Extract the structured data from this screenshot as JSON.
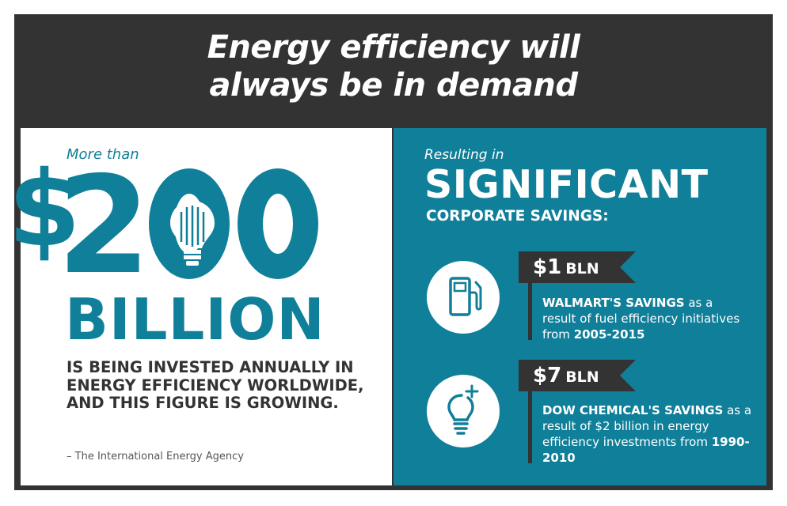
{
  "title": {
    "line1": "Energy efficiency will",
    "line2": "always be in demand"
  },
  "left": {
    "lead": "More than",
    "dollar_sign": "$",
    "digit_two": "2",
    "billion": "BILLION",
    "statement": "IS BEING INVESTED ANNUALLY IN ENERGY EFFICIENCY WORLDWIDE, AND THIS FIGURE IS GROWING.",
    "source": "– The International Energy Agency"
  },
  "right": {
    "lead": "Resulting in",
    "headline": "SIGNIFICANT",
    "subheadline": "CORPORATE SAVINGS:",
    "items": [
      {
        "icon": "fuel-pump-icon",
        "amount": "$1",
        "unit": "BLN",
        "desc_bold": "WALMART'S SAVINGS",
        "desc_rest": " as a result of fuel efficiency initiatives from ",
        "desc_years": "2005-2015"
      },
      {
        "icon": "lightbulb-plus-icon",
        "amount": "$7",
        "unit": "BLN",
        "desc_bold": "DOW CHEMICAL'S SAVINGS",
        "desc_rest": " as a result of $2 billion in energy efficiency investments from ",
        "desc_years": "1990-2010"
      }
    ]
  },
  "colors": {
    "teal": "#107f99",
    "dark": "#333333",
    "white": "#ffffff"
  }
}
